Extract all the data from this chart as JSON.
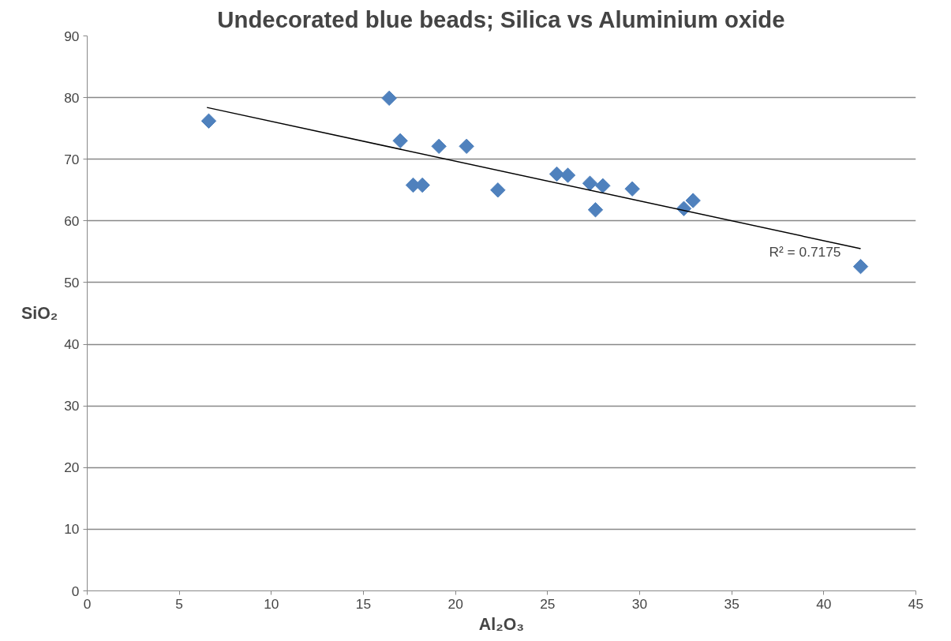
{
  "chart_data": {
    "type": "scatter",
    "title": "Undecorated blue beads; Silica vs Aluminium oxide",
    "xlabel": "Al₂O₃",
    "ylabel": "SiO₂",
    "series": [
      {
        "color": "#4f81bd",
        "x": [
          6.6,
          16.4,
          17.0,
          19.1,
          20.6,
          17.7,
          18.2,
          22.3,
          25.5,
          26.1,
          27.3,
          28.0,
          27.6,
          29.6,
          32.4,
          32.9,
          42.0
        ],
        "values": [
          76.2,
          79.9,
          73.0,
          72.1,
          72.1,
          65.8,
          65.8,
          65.0,
          67.6,
          67.4,
          66.1,
          65.7,
          61.8,
          65.2,
          62.0,
          63.3,
          52.6
        ]
      },
      {
        "type": "line",
        "marker": "none",
        "color": "#000000",
        "x": [
          6.5,
          42.0
        ],
        "values": [
          78.4,
          55.5
        ]
      }
    ],
    "annotations": [
      "R² = 0.7175"
    ],
    "xlim": [
      0,
      45
    ],
    "xticks": [
      0,
      5,
      10,
      15,
      20,
      25,
      30,
      35,
      40,
      45
    ],
    "ylim": [
      0,
      90
    ],
    "yticks": [
      0,
      10,
      20,
      30,
      40,
      50,
      60,
      70,
      80,
      90
    ],
    "grid": "y",
    "marker": "diamond",
    "line_style": "solid"
  }
}
